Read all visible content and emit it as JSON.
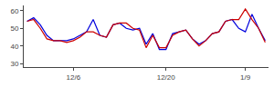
{
  "chart_data": {
    "type": "line",
    "categories": [
      null,
      null,
      null,
      null,
      null,
      null,
      null,
      "12/6",
      null,
      null,
      null,
      null,
      null,
      null,
      null,
      null,
      null,
      null,
      null,
      null,
      null,
      "12/20",
      null,
      null,
      null,
      null,
      null,
      null,
      null,
      null,
      null,
      null,
      null,
      "1/9",
      null,
      null,
      null
    ],
    "series": [
      {
        "color": "#0000dd",
        "values": [
          54,
          56,
          52,
          46,
          43,
          43,
          43,
          44,
          46,
          48,
          55,
          46,
          45,
          52,
          53,
          50,
          49,
          50,
          41,
          47,
          38,
          38,
          47,
          48,
          49,
          44,
          41,
          43,
          47,
          48,
          54,
          55,
          50,
          48,
          58,
          50,
          43
        ]
      },
      {
        "color": "#cc0000",
        "values": [
          54,
          55,
          50,
          44,
          43,
          43,
          42,
          43,
          45,
          48,
          48,
          46,
          45,
          52,
          53,
          53,
          50,
          49,
          39,
          46,
          39,
          39,
          46,
          48,
          49,
          44,
          40,
          43,
          47,
          48,
          54,
          55,
          55,
          61,
          55,
          50,
          42
        ]
      }
    ],
    "ylim": [
      28,
      63
    ],
    "yticks": [
      30,
      40,
      50,
      60
    ],
    "grid": false
  }
}
